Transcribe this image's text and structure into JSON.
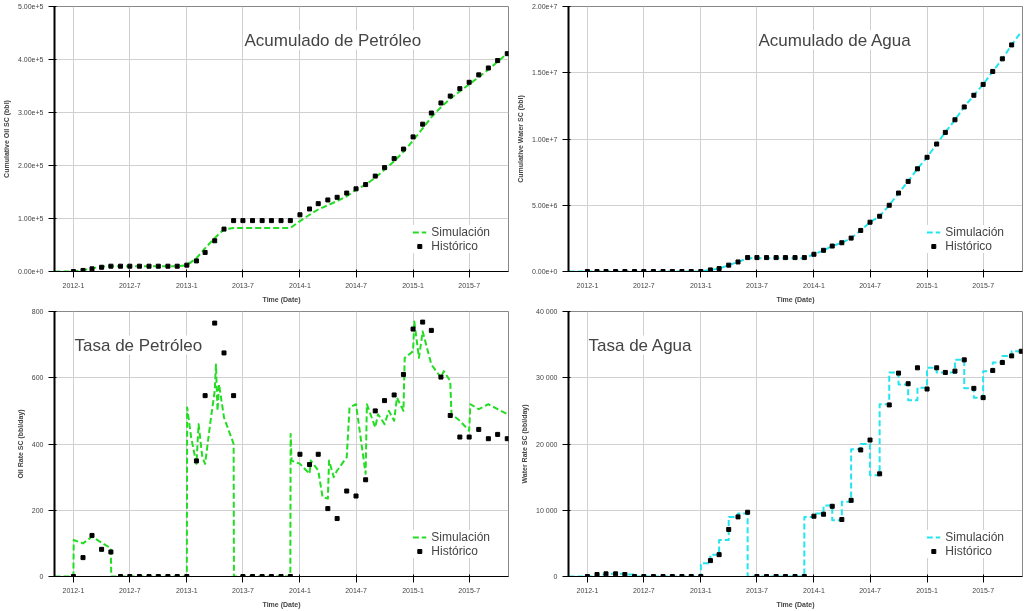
{
  "chart_data": [
    {
      "type": "line",
      "title": "Acumulado de Petróleo",
      "xlabel": "Time (Date)",
      "ylabel": "Cumulative Oil SC (bbl)",
      "xlim": [
        "2011-11-01",
        "2015-11-05"
      ],
      "ylim": [
        0,
        500000
      ],
      "xticks": [
        {
          "value": "2012-01",
          "label": "2012-1"
        },
        {
          "value": "2012-07",
          "label": "2012-7"
        },
        {
          "value": "2013-01",
          "label": "2013-1"
        },
        {
          "value": "2013-07",
          "label": "2013-7"
        },
        {
          "value": "2014-01",
          "label": "2014-1"
        },
        {
          "value": "2014-07",
          "label": "2014-7"
        },
        {
          "value": "2015-01",
          "label": "2015-1"
        },
        {
          "value": "2015-07",
          "label": "2015-7"
        }
      ],
      "yticks": [
        {
          "value": 0,
          "label": "0.00e+0"
        },
        {
          "value": 100000,
          "label": "1.00e+5"
        },
        {
          "value": 200000,
          "label": "2.00e+5"
        },
        {
          "value": 300000,
          "label": "3.00e+5"
        },
        {
          "value": 400000,
          "label": "4.00e+5"
        },
        {
          "value": 500000,
          "label": "5.00e+5"
        }
      ],
      "grid": true,
      "legend": "bottom right",
      "x": [
        "2011-11",
        "2011-12",
        "2012-01",
        "2012-02",
        "2012-03",
        "2012-04",
        "2012-05",
        "2012-06",
        "2012-07",
        "2012-08",
        "2012-09",
        "2012-10",
        "2012-11",
        "2012-12",
        "2013-01",
        "2013-02",
        "2013-03",
        "2013-04",
        "2013-05",
        "2013-06",
        "2013-07",
        "2013-08",
        "2013-09",
        "2013-10",
        "2013-11",
        "2013-12",
        "2014-01",
        "2014-02",
        "2014-03",
        "2014-04",
        "2014-05",
        "2014-06",
        "2014-07",
        "2014-08",
        "2014-09",
        "2014-10",
        "2014-11",
        "2014-12",
        "2015-01",
        "2015-02",
        "2015-03",
        "2015-04",
        "2015-05",
        "2015-06",
        "2015-07",
        "2015-08",
        "2015-09",
        "2015-10",
        "2015-11"
      ],
      "series": [
        {
          "name": "Simulación",
          "color": "#22dd22",
          "line_style": "dashed",
          "values": [
            0,
            0,
            0,
            3000,
            6000,
            9000,
            10000,
            10000,
            10000,
            10000,
            10000,
            10000,
            10000,
            10000,
            12000,
            25000,
            44000,
            63000,
            80000,
            82000,
            82000,
            82000,
            82000,
            82000,
            82000,
            82000,
            95000,
            107000,
            117000,
            125000,
            133000,
            142000,
            154000,
            164000,
            177000,
            192000,
            208000,
            226000,
            247000,
            270000,
            291000,
            310000,
            326000,
            340000,
            353000,
            367000,
            381000,
            396000,
            411000
          ]
        },
        {
          "name": "Histórico",
          "type": "scatter",
          "color": "#000000",
          "marker": "square",
          "values": [
            null,
            null,
            0,
            2000,
            5000,
            8000,
            10000,
            10000,
            10000,
            10000,
            10000,
            10000,
            10000,
            10000,
            12000,
            20000,
            36000,
            58000,
            80000,
            96000,
            96000,
            96000,
            96000,
            96000,
            96000,
            96000,
            107000,
            118000,
            128000,
            135000,
            140000,
            148000,
            156000,
            164000,
            180000,
            196000,
            213000,
            231000,
            254000,
            278000,
            299000,
            318000,
            331000,
            345000,
            357000,
            371000,
            384000,
            398000,
            411000
          ]
        }
      ]
    },
    {
      "type": "line",
      "title": "Acumulado de Agua",
      "xlabel": "Time (Date)",
      "ylabel": "Cumulative Water SC (bbl)",
      "xlim": [
        "2011-11-01",
        "2015-11-05"
      ],
      "ylim": [
        0,
        20000000
      ],
      "xticks": [
        {
          "value": "2012-01",
          "label": "2012-1"
        },
        {
          "value": "2012-07",
          "label": "2012-7"
        },
        {
          "value": "2013-01",
          "label": "2013-1"
        },
        {
          "value": "2013-07",
          "label": "2013-7"
        },
        {
          "value": "2014-01",
          "label": "2014-1"
        },
        {
          "value": "2014-07",
          "label": "2014-7"
        },
        {
          "value": "2015-01",
          "label": "2015-1"
        },
        {
          "value": "2015-07",
          "label": "2015-7"
        }
      ],
      "yticks": [
        {
          "value": 0,
          "label": "0.00e+0"
        },
        {
          "value": 5000000,
          "label": "5.00e+6"
        },
        {
          "value": 10000000,
          "label": "1.00e+7"
        },
        {
          "value": 15000000,
          "label": "1.50e+7"
        },
        {
          "value": 20000000,
          "label": "2.00e+7"
        }
      ],
      "grid": true,
      "legend": "bottom right",
      "x": [
        "2011-11",
        "2011-12",
        "2012-01",
        "2012-02",
        "2012-03",
        "2012-04",
        "2012-05",
        "2012-06",
        "2012-07",
        "2012-08",
        "2012-09",
        "2012-10",
        "2012-11",
        "2012-12",
        "2013-01",
        "2013-02",
        "2013-03",
        "2013-04",
        "2013-05",
        "2013-06",
        "2013-07",
        "2013-08",
        "2013-09",
        "2013-10",
        "2013-11",
        "2013-12",
        "2014-01",
        "2014-02",
        "2014-03",
        "2014-04",
        "2014-05",
        "2014-06",
        "2014-07",
        "2014-08",
        "2014-09",
        "2014-10",
        "2014-11",
        "2014-12",
        "2015-01",
        "2015-02",
        "2015-03",
        "2015-04",
        "2015-05",
        "2015-06",
        "2015-07",
        "2015-08",
        "2015-09",
        "2015-10",
        "2015-11"
      ],
      "series": [
        {
          "name": "Simulación",
          "color": "#22e5f0",
          "line_style": "dashed",
          "values": [
            0,
            0,
            0,
            0,
            0,
            0,
            0,
            0,
            0,
            0,
            0,
            0,
            0,
            0,
            0,
            120000,
            220000,
            480000,
            720000,
            1000000,
            1000000,
            1000000,
            1000000,
            1000000,
            1000000,
            1000000,
            1300000,
            1600000,
            1920000,
            2170000,
            2520000,
            3100000,
            3720000,
            4170000,
            5000000,
            5920000,
            6800000,
            7750000,
            8620000,
            9620000,
            10500000,
            11450000,
            12420000,
            13300000,
            14120000,
            15100000,
            16050000,
            17100000,
            18100000
          ]
        },
        {
          "name": "Histórico",
          "type": "scatter",
          "color": "#000000",
          "marker": "square",
          "values": [
            null,
            null,
            0,
            0,
            0,
            0,
            0,
            0,
            0,
            0,
            0,
            0,
            0,
            0,
            0,
            120000,
            220000,
            480000,
            720000,
            1050000,
            1050000,
            1050000,
            1050000,
            1050000,
            1050000,
            1050000,
            1300000,
            1600000,
            1920000,
            2170000,
            2520000,
            3100000,
            3720000,
            4170000,
            5000000,
            5920000,
            6800000,
            7750000,
            8620000,
            9620000,
            10500000,
            11450000,
            12420000,
            13300000,
            14120000,
            15100000,
            16050000,
            17100000,
            null
          ]
        }
      ]
    },
    {
      "type": "line",
      "title": "Tasa de Petróleo",
      "xlabel": "Time (Date)",
      "ylabel": "Oil Rate SC (bbl/day)",
      "xlim": [
        "2011-11-01",
        "2015-11-05"
      ],
      "ylim": [
        0,
        800
      ],
      "xticks": [
        {
          "value": "2012-01",
          "label": "2012-1"
        },
        {
          "value": "2012-07",
          "label": "2012-7"
        },
        {
          "value": "2013-01",
          "label": "2013-1"
        },
        {
          "value": "2013-07",
          "label": "2013-7"
        },
        {
          "value": "2014-01",
          "label": "2014-1"
        },
        {
          "value": "2014-07",
          "label": "2014-7"
        },
        {
          "value": "2015-01",
          "label": "2015-1"
        },
        {
          "value": "2015-07",
          "label": "2015-7"
        }
      ],
      "yticks": [
        0,
        200,
        400,
        600,
        800
      ],
      "grid": true,
      "legend": "bottom right",
      "x": [
        "2012-01",
        "2012-02",
        "2012-03",
        "2012-04",
        "2012-05",
        "2012-06",
        "2012-07",
        "2012-08",
        "2012-09",
        "2012-10",
        "2012-11",
        "2012-12",
        "2013-01",
        "2013-02",
        "2013-03",
        "2013-04",
        "2013-05",
        "2013-06",
        "2013-07",
        "2013-08",
        "2013-09",
        "2013-10",
        "2013-11",
        "2013-12",
        "2014-01",
        "2014-02",
        "2014-03",
        "2014-04",
        "2014-05",
        "2014-06",
        "2014-07",
        "2014-08",
        "2014-09",
        "2014-10",
        "2014-11",
        "2014-12",
        "2015-01",
        "2015-02",
        "2015-03",
        "2015-04",
        "2015-05",
        "2015-06",
        "2015-07",
        "2015-08",
        "2015-09",
        "2015-10",
        "2015-11"
      ],
      "series": [
        {
          "name": "Simulación",
          "color": "#22dd22",
          "line_style": "dashed",
          "x": [
            "2011-11-01",
            "2012-01-01",
            "2012-01-02",
            "2012-02-01",
            "2012-03-01",
            "2012-05-01",
            "2012-05-02",
            "2013-01-01",
            "2013-01-02",
            "2013-01-15",
            "2013-02-01",
            "2013-02-08",
            "2013-02-20",
            "2013-03-01",
            "2013-03-20",
            "2013-04-01",
            "2013-04-05",
            "2013-04-10",
            "2013-04-15",
            "2013-05-01",
            "2013-06-01",
            "2013-06-02",
            "2013-12-01",
            "2013-12-02",
            "2013-12-05",
            "2014-01-01",
            "2014-02-01",
            "2014-02-05",
            "2014-03-01",
            "2014-03-15",
            "2014-04-01",
            "2014-04-05",
            "2014-04-20",
            "2014-05-01",
            "2014-06-01",
            "2014-06-10",
            "2014-07-01",
            "2014-08-01",
            "2014-08-05",
            "2014-09-01",
            "2014-09-10",
            "2014-10-01",
            "2014-10-15",
            "2014-11-01",
            "2014-11-10",
            "2014-12-01",
            "2014-12-05",
            "2015-01-01",
            "2015-01-05",
            "2015-01-20",
            "2015-02-01",
            "2015-03-01",
            "2015-04-01",
            "2015-04-10",
            "2015-05-01",
            "2015-05-05",
            "2015-06-01",
            "2015-07-01",
            "2015-07-05",
            "2015-08-01",
            "2015-09-01",
            "2015-10-01",
            "2015-11-01"
          ],
          "values": [
            0,
            0,
            110,
            100,
            120,
            85,
            0,
            0,
            510,
            420,
            340,
            460,
            360,
            340,
            480,
            560,
            640,
            500,
            580,
            480,
            400,
            0,
            0,
            430,
            350,
            340,
            310,
            350,
            320,
            240,
            235,
            350,
            300,
            320,
            360,
            510,
            520,
            310,
            520,
            450,
            490,
            460,
            500,
            470,
            540,
            500,
            660,
            680,
            770,
            660,
            740,
            640,
            600,
            620,
            590,
            490,
            470,
            440,
            520,
            505,
            520,
            505,
            490
          ]
        },
        {
          "name": "Histórico",
          "type": "scatter",
          "color": "#000000",
          "marker": "square",
          "values": [
            0,
            57,
            124,
            82,
            74,
            0,
            0,
            0,
            0,
            0,
            0,
            0,
            0,
            349,
            546,
            765,
            675,
            546,
            0,
            0,
            0,
            0,
            0,
            0,
            369,
            338,
            369,
            205,
            175,
            258,
            243,
            292,
            500,
            531,
            548,
            610,
            747,
            768,
            743,
            602,
            486,
            421,
            421,
            444,
            416,
            429,
            416
          ]
        }
      ]
    },
    {
      "type": "step",
      "title": "Tasa de Agua",
      "xlabel": "Time (Date)",
      "ylabel": "Water Rate SC (bbl/day)",
      "xlim": [
        "2011-11-01",
        "2015-11-05"
      ],
      "ylim": [
        0,
        40000
      ],
      "xticks": [
        {
          "value": "2012-01",
          "label": "2012-1"
        },
        {
          "value": "2012-07",
          "label": "2012-7"
        },
        {
          "value": "2013-01",
          "label": "2013-1"
        },
        {
          "value": "2013-07",
          "label": "2013-7"
        },
        {
          "value": "2014-01",
          "label": "2014-1"
        },
        {
          "value": "2014-07",
          "label": "2014-7"
        },
        {
          "value": "2015-01",
          "label": "2015-1"
        },
        {
          "value": "2015-07",
          "label": "2015-7"
        }
      ],
      "yticks": [
        0,
        {
          "value": 10000,
          "label": "10 000"
        },
        {
          "value": 20000,
          "label": "20 000"
        },
        {
          "value": 30000,
          "label": "30 000"
        },
        {
          "value": 40000,
          "label": "40 000"
        }
      ],
      "grid": true,
      "legend": "bottom right",
      "x": [
        "2011-11",
        "2011-12",
        "2012-01",
        "2012-02",
        "2012-03",
        "2012-04",
        "2012-05",
        "2012-06",
        "2012-07",
        "2012-08",
        "2012-09",
        "2012-10",
        "2012-11",
        "2012-12",
        "2013-01",
        "2013-02",
        "2013-03",
        "2013-04",
        "2013-05",
        "2013-06",
        "2013-07",
        "2013-08",
        "2013-09",
        "2013-10",
        "2013-11",
        "2013-12",
        "2014-01",
        "2014-02",
        "2014-03",
        "2014-04",
        "2014-05",
        "2014-06",
        "2014-07",
        "2014-08",
        "2014-09",
        "2014-10",
        "2014-11",
        "2014-12",
        "2015-01",
        "2015-02",
        "2015-03",
        "2015-04",
        "2015-05",
        "2015-06",
        "2015-07",
        "2015-08",
        "2015-09",
        "2015-10",
        "2015-11"
      ],
      "series": [
        {
          "name": "Simulación",
          "color": "#22e5f0",
          "line_style": "dashed",
          "values": [
            0,
            0,
            0,
            300,
            400,
            400,
            300,
            0,
            0,
            0,
            0,
            0,
            0,
            0,
            2000,
            3300,
            5500,
            9000,
            9500,
            0,
            0,
            0,
            0,
            0,
            0,
            9000,
            9500,
            10700,
            8500,
            11300,
            19200,
            20000,
            15300,
            26000,
            30800,
            29000,
            26600,
            28500,
            31500,
            30800,
            30800,
            32700,
            28400,
            27000,
            31000,
            32300,
            33300,
            34000,
            34000
          ]
        },
        {
          "name": "Histórico",
          "type": "scatter",
          "color": "#000000",
          "marker": "square",
          "values": [
            null,
            null,
            0,
            300,
            400,
            400,
            300,
            0,
            0,
            0,
            0,
            0,
            0,
            0,
            0,
            2400,
            3300,
            7100,
            9000,
            9700,
            0,
            0,
            0,
            0,
            0,
            0,
            9100,
            9400,
            10600,
            8600,
            11500,
            19100,
            20600,
            15500,
            25900,
            30700,
            29100,
            31500,
            28300,
            31500,
            30800,
            31000,
            32700,
            28400,
            27000,
            31100,
            32300,
            33300,
            34000
          ]
        }
      ]
    }
  ]
}
